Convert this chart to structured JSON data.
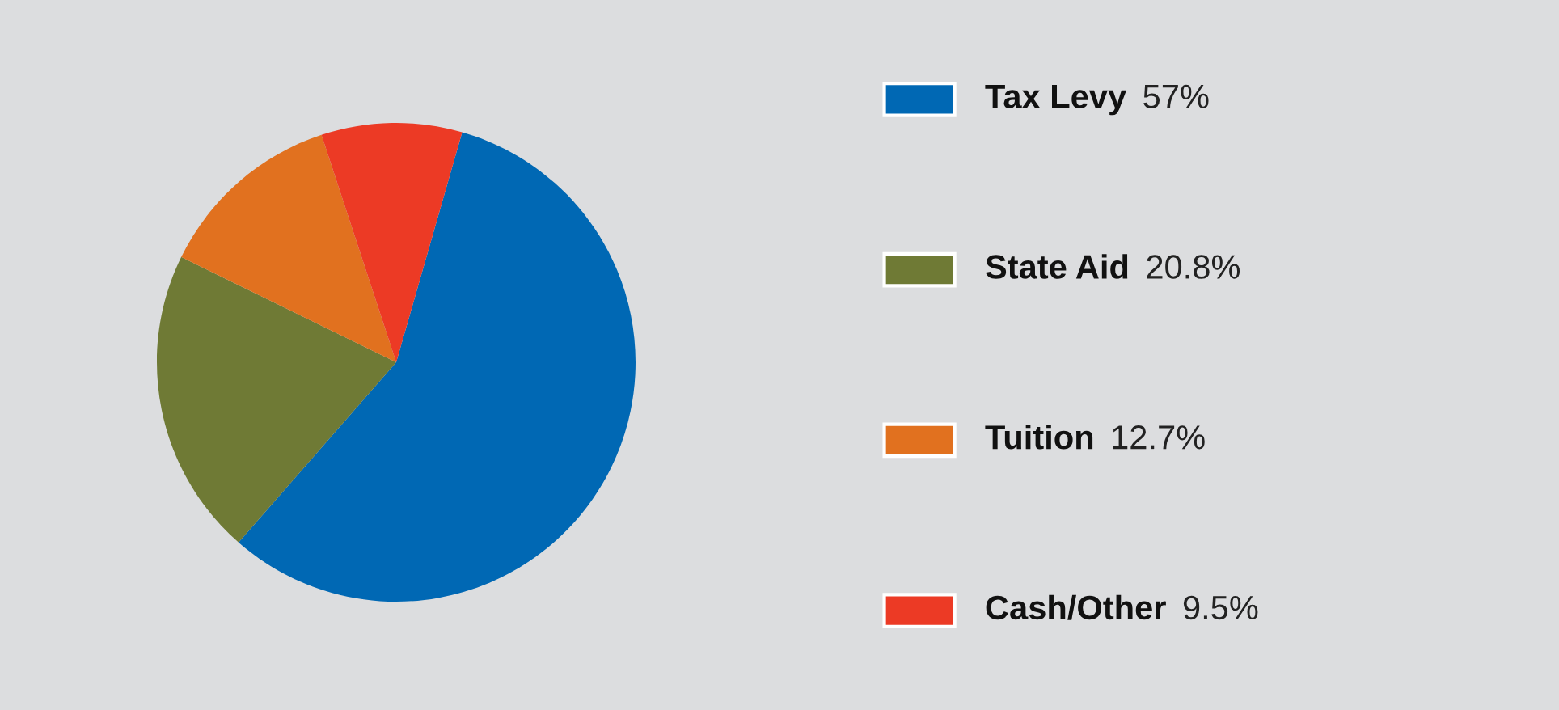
{
  "chart_data": {
    "type": "pie",
    "categories": [
      "Tax Levy",
      "State Aid",
      "Tuition",
      "Cash/Other"
    ],
    "values": [
      57,
      20.8,
      12.7,
      9.5
    ],
    "value_labels": [
      "57%",
      "20.8%",
      "12.7%",
      "9.5%"
    ],
    "colors": [
      "#0068b4",
      "#6f7a35",
      "#e1711f",
      "#ec3a25"
    ],
    "legend": "right"
  }
}
